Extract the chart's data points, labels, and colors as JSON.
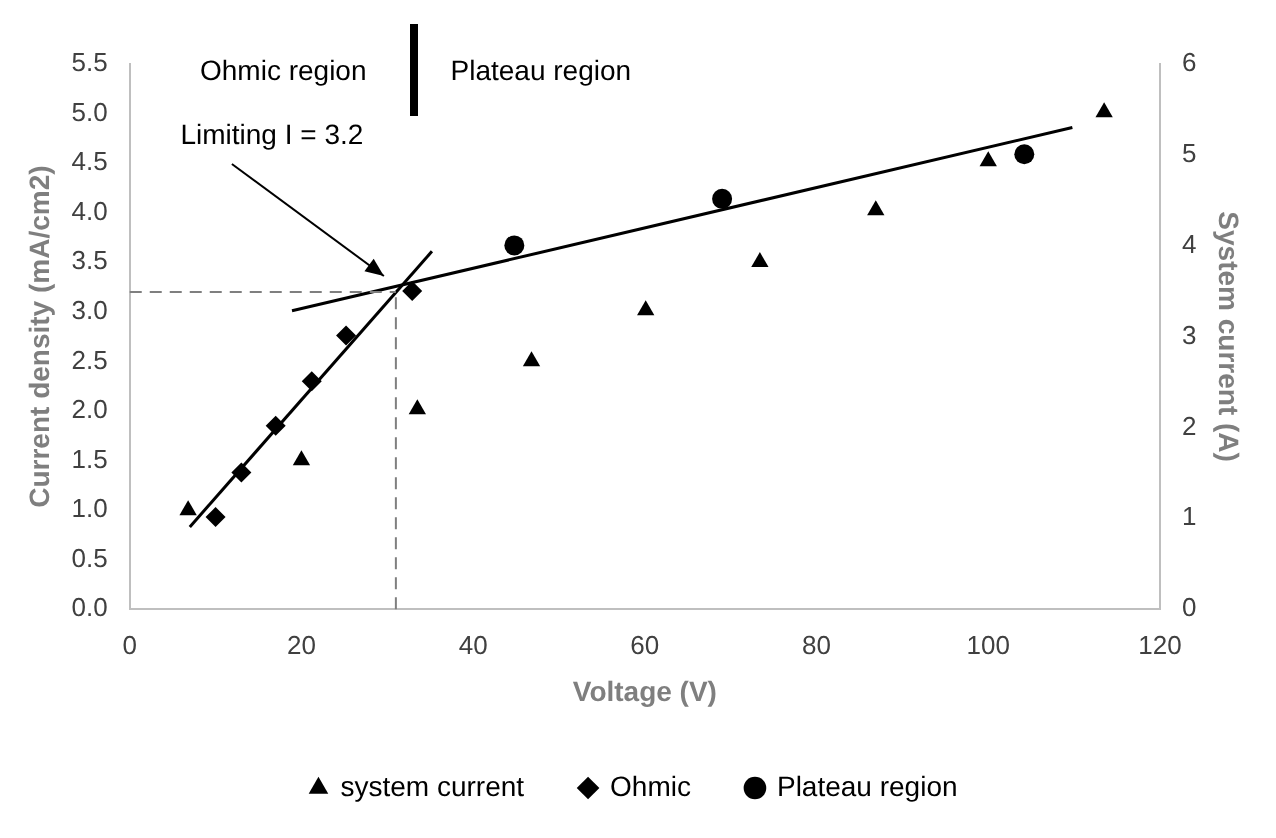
{
  "chart_data": {
    "type": "scatter",
    "xlabel": "Voltage (V)",
    "ylabel": "Current density (mA/cm2)",
    "y2label": "System current (A)",
    "xlim": [
      0,
      120
    ],
    "xticks": [
      0,
      20,
      40,
      60,
      80,
      100,
      120
    ],
    "ylim": [
      0,
      5.5
    ],
    "yticks": [
      {
        "value": 0,
        "label": "0.0"
      },
      {
        "value": 0.5,
        "label": "0.5"
      },
      {
        "value": 1,
        "label": "1.0"
      },
      {
        "value": 1.5,
        "label": "1.5"
      },
      {
        "value": 2,
        "label": "2.0"
      },
      {
        "value": 2.5,
        "label": "2.5"
      },
      {
        "value": 3,
        "label": "3.0"
      },
      {
        "value": 3.5,
        "label": "3.5"
      },
      {
        "value": 4,
        "label": "4.0"
      },
      {
        "value": 4.5,
        "label": "4.5"
      },
      {
        "value": 5,
        "label": "5.0"
      },
      {
        "value": 5.5,
        "label": "5.5"
      }
    ],
    "y2lim": [
      0,
      6
    ],
    "y2ticks": [
      0,
      1,
      2,
      3,
      4,
      5,
      6
    ],
    "grid": false,
    "legend": "bottom",
    "series": [
      {
        "name": "system current",
        "type": "scatter",
        "axis": "y2",
        "marker": "triangle",
        "color": "#000000",
        "x": [
          6.8,
          20.0,
          33.5,
          46.8,
          60.1,
          73.4,
          86.9,
          100.0,
          113.5
        ],
        "values": [
          1.09,
          1.64,
          2.2,
          2.73,
          3.29,
          3.82,
          4.39,
          4.93,
          5.47
        ]
      },
      {
        "name": "Ohmic",
        "type": "scatter",
        "marker": "diamond",
        "color": "#000000",
        "x": [
          10.0,
          13.0,
          17.0,
          21.2,
          25.2,
          32.9
        ],
        "values": [
          0.93,
          1.38,
          1.85,
          2.3,
          2.76,
          3.21
        ]
      },
      {
        "name": "Plateau region",
        "type": "scatter",
        "marker": "circle",
        "color": "#000000",
        "x": [
          44.8,
          69.0,
          104.2
        ],
        "values": [
          3.67,
          4.14,
          4.59
        ]
      },
      {
        "type": "line",
        "marker": "none",
        "color": "#000000",
        "x": [
          7.0,
          35.2
        ],
        "values": [
          0.83,
          3.61
        ]
      },
      {
        "type": "line",
        "marker": "none",
        "color": "#000000",
        "x": [
          18.9,
          109.8
        ],
        "values": [
          3.01,
          4.86
        ]
      }
    ],
    "ref_lines": [
      {
        "axis": "y",
        "value": 3.2,
        "color": "#7f7f7f",
        "line_style": "dashed"
      },
      {
        "axis": "x",
        "value": 31,
        "color": "#7f7f7f",
        "line_style": "dashed"
      }
    ],
    "annotations": [
      "Limiting I = 3.2",
      "Ohmic region",
      "Plateau region"
    ]
  }
}
